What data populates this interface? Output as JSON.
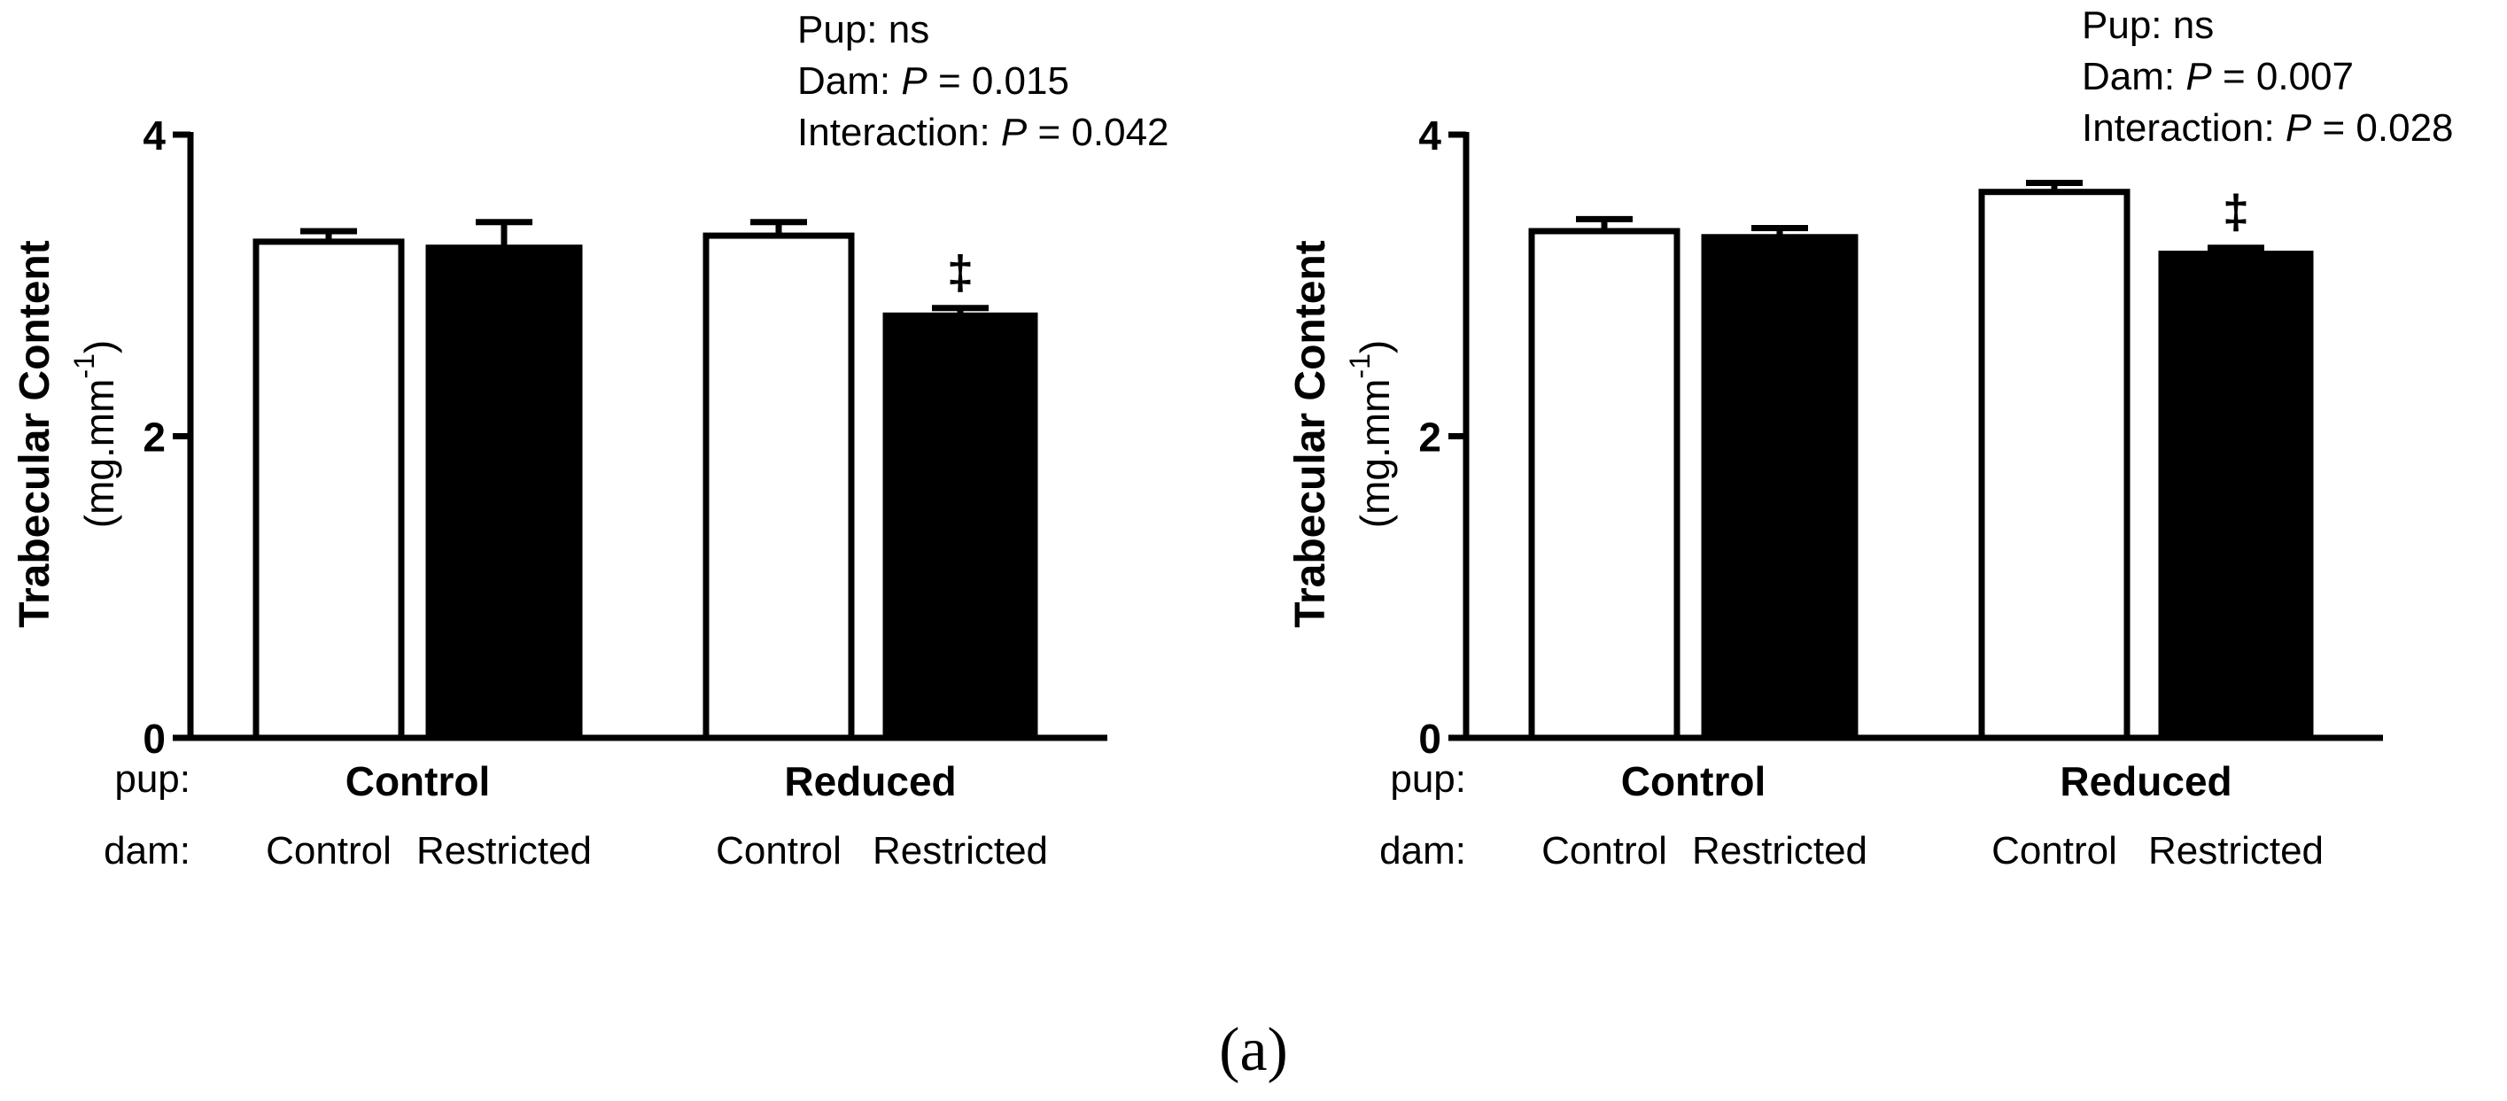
{
  "figure": {
    "caption": "(a)"
  },
  "chart_data": [
    {
      "type": "bar",
      "ylabel": "Trabecular Content",
      "ylabel_units": "(mg.mm",
      "ylabel_units_sup": "-1",
      "ylabel_units_close": ")",
      "ylim": [
        0,
        4
      ],
      "yticks": [
        "0",
        "2",
        "4"
      ],
      "row_labels": {
        "pup": "pup:",
        "dam": "dam:"
      },
      "groups": [
        {
          "pup": "Control",
          "bars": [
            {
              "dam": "Control",
              "value": 3.29,
              "error": 0.07,
              "fill": "#ffffff",
              "marker": ""
            },
            {
              "dam": "Restricted",
              "value": 3.25,
              "error": 0.17,
              "fill": "#000000",
              "marker": ""
            }
          ]
        },
        {
          "pup": "Reduced",
          "bars": [
            {
              "dam": "Control",
              "value": 3.33,
              "error": 0.09,
              "fill": "#ffffff",
              "marker": ""
            },
            {
              "dam": "Restricted",
              "value": 2.8,
              "error": 0.05,
              "fill": "#000000",
              "marker": "‡"
            }
          ]
        }
      ],
      "stats": {
        "pup": {
          "label": "Pup:",
          "value": "ns"
        },
        "dam": {
          "label": "Dam:",
          "p": "P",
          "value": "= 0.015"
        },
        "interaction": {
          "label": "Interaction:",
          "p": "P",
          "value": "= 0.042"
        }
      }
    },
    {
      "type": "bar",
      "ylabel": "Trabecular Content",
      "ylabel_units": "(mg.mm",
      "ylabel_units_sup": "-1",
      "ylabel_units_close": ")",
      "ylim": [
        0,
        4
      ],
      "yticks": [
        "0",
        "2",
        "4"
      ],
      "row_labels": {
        "pup": "pup:",
        "dam": "dam:"
      },
      "groups": [
        {
          "pup": "Control",
          "bars": [
            {
              "dam": "Control",
              "value": 3.36,
              "error": 0.08,
              "fill": "#ffffff",
              "marker": ""
            },
            {
              "dam": "Restricted",
              "value": 3.32,
              "error": 0.06,
              "fill": "#000000",
              "marker": ""
            }
          ]
        },
        {
          "pup": "Reduced",
          "bars": [
            {
              "dam": "Control",
              "value": 3.62,
              "error": 0.06,
              "fill": "#ffffff",
              "marker": ""
            },
            {
              "dam": "Restricted",
              "value": 3.21,
              "error": 0.04,
              "fill": "#000000",
              "marker": "‡"
            }
          ]
        }
      ],
      "stats": {
        "pup": {
          "label": "Pup:",
          "value": "ns"
        },
        "dam": {
          "label": "Dam:",
          "p": "P",
          "value": "= 0.007"
        },
        "interaction": {
          "label": "Interaction:",
          "p": "P",
          "value": "= 0.028"
        }
      }
    }
  ]
}
